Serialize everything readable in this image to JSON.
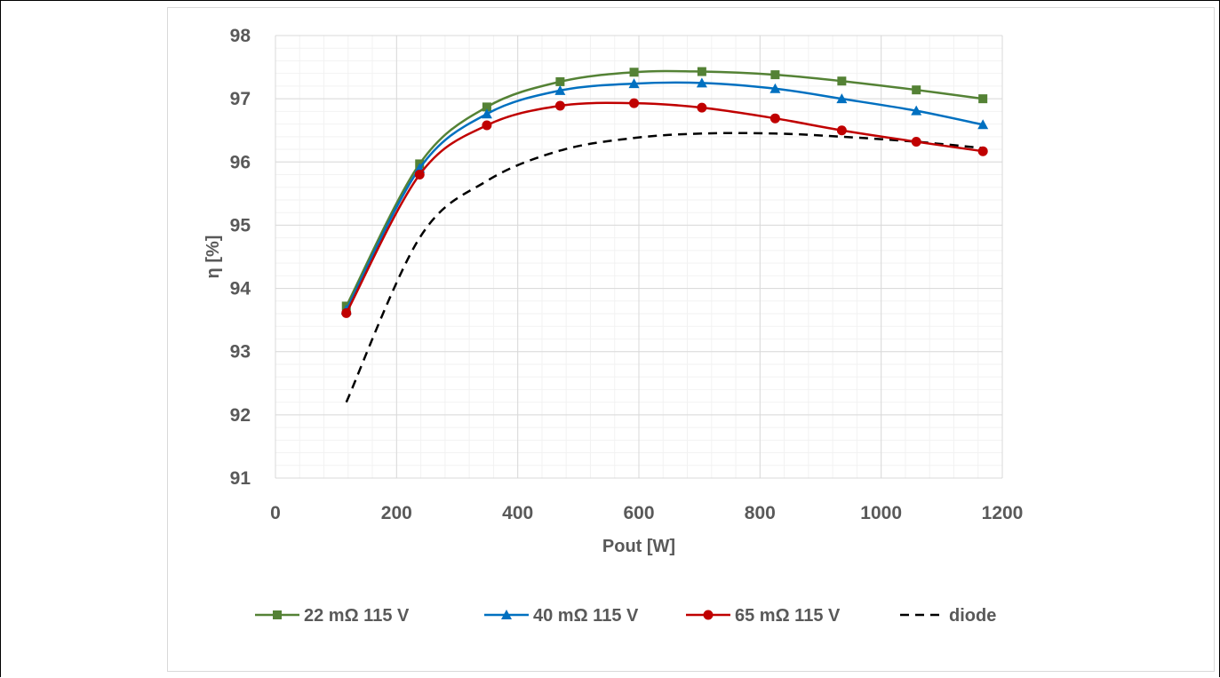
{
  "chart_data": {
    "type": "line",
    "title": "",
    "xlabel": "Pout [W]",
    "ylabel": "η [%]",
    "xlim": [
      0,
      1200
    ],
    "ylim": [
      91,
      98
    ],
    "xticks": [
      "0",
      "200",
      "400",
      "600",
      "800",
      "1000",
      "1200"
    ],
    "yticks": [
      "91",
      "92",
      "93",
      "94",
      "95",
      "96",
      "97",
      "98"
    ],
    "grid": "major and minor",
    "legend_position": "bottom",
    "series": [
      {
        "name": "22 mΩ 115 V",
        "color": "#548235",
        "marker": "square",
        "line_style": "solid",
        "x": [
          117,
          238,
          349,
          470,
          592,
          704,
          825,
          935,
          1058,
          1168
        ],
        "y": [
          93.72,
          95.97,
          96.87,
          97.27,
          97.42,
          97.43,
          97.38,
          97.28,
          97.14,
          97.0
        ]
      },
      {
        "name": "40 mΩ 115 V",
        "color": "#0070c0",
        "marker": "triangle",
        "line_style": "solid",
        "x": [
          117,
          238,
          349,
          470,
          592,
          704,
          825,
          935,
          1058,
          1168
        ],
        "y": [
          93.66,
          95.9,
          96.76,
          97.13,
          97.24,
          97.25,
          97.16,
          97.0,
          96.81,
          96.59
        ]
      },
      {
        "name": "65 mΩ 115 V",
        "color": "#c00000",
        "marker": "circle",
        "line_style": "solid",
        "x": [
          117,
          238,
          349,
          470,
          592,
          704,
          825,
          935,
          1058,
          1168
        ],
        "y": [
          93.61,
          95.8,
          96.58,
          96.89,
          96.93,
          96.86,
          96.69,
          96.5,
          96.32,
          96.17
        ]
      },
      {
        "name": "diode",
        "color": "#000000",
        "marker": "none",
        "line_style": "dashed",
        "x": [
          117,
          238,
          349,
          470,
          592,
          704,
          825,
          935,
          1058,
          1168
        ],
        "y": [
          92.2,
          94.8,
          95.7,
          96.18,
          96.38,
          96.45,
          96.45,
          96.4,
          96.32,
          96.22
        ]
      }
    ]
  }
}
